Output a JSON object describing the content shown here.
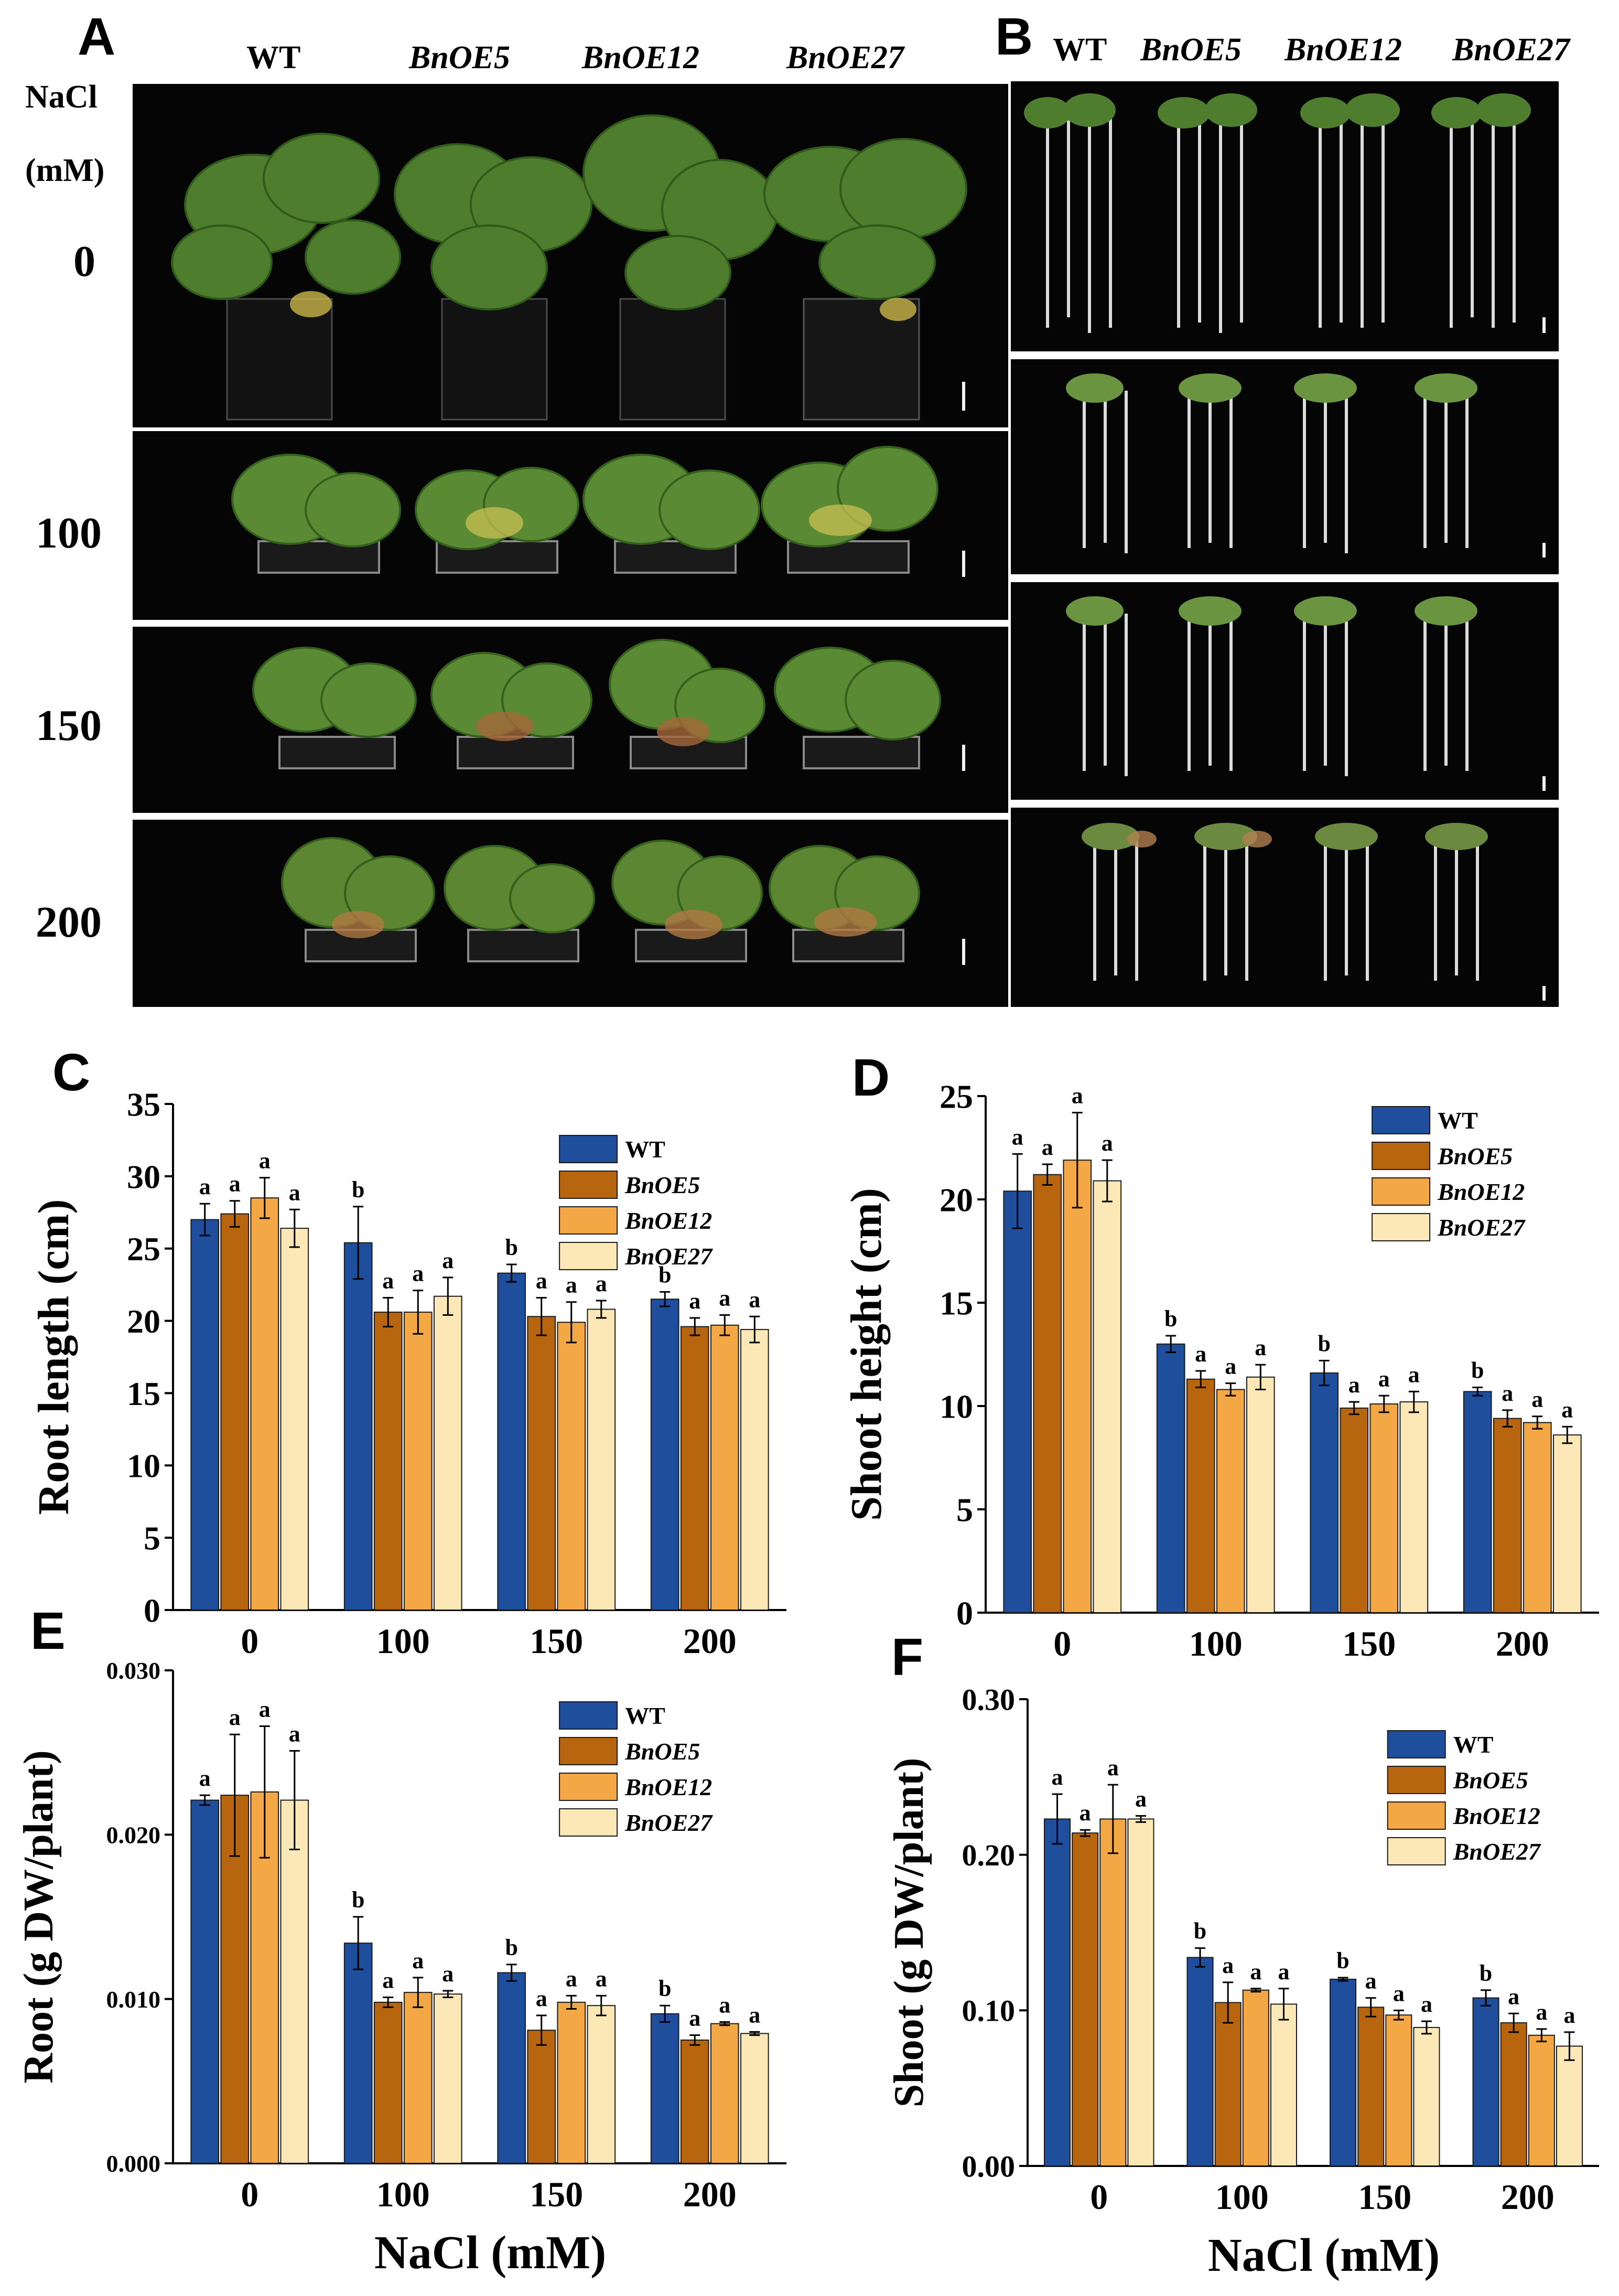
{
  "figure": {
    "panel_labels": [
      "A",
      "B",
      "C",
      "D",
      "E",
      "F"
    ],
    "genotypes": [
      "WT",
      "BnOE5",
      "BnOE12",
      "BnOE27"
    ],
    "nacl_header": [
      "NaCl",
      "(mM)"
    ],
    "salt_levels": [
      "0",
      "100",
      "150",
      "200"
    ],
    "photo_descriptions": {
      "A": "Potted plants of each genotype at each NaCl level",
      "B": "Uprooted seedlings of each genotype at each NaCl level"
    }
  },
  "colors": {
    "WT": "#1f4e9c",
    "BnOE5": "#b8650f",
    "BnOE12": "#f4a845",
    "BnOE27": "#fce7b6"
  },
  "chart_data": [
    {
      "panel": "C",
      "type": "bar",
      "categories": [
        "0",
        "100",
        "150",
        "200"
      ],
      "ylabel": "Root length (cm)",
      "xlabel": "",
      "ylim": [
        0,
        35
      ],
      "yticks": [
        "0",
        "5",
        "10",
        "15",
        "20",
        "25",
        "30",
        "35"
      ],
      "legend_position": "top-right",
      "series": [
        {
          "name": "WT",
          "values": [
            27.0,
            25.4,
            23.3,
            21.5
          ],
          "errors": [
            1.1,
            2.5,
            0.6,
            0.5
          ],
          "letters": [
            "a",
            "b",
            "b",
            "b"
          ]
        },
        {
          "name": "BnOE5",
          "values": [
            27.4,
            20.6,
            20.3,
            19.6
          ],
          "errors": [
            0.9,
            1.0,
            1.3,
            0.6
          ],
          "letters": [
            "a",
            "a",
            "a",
            "a"
          ]
        },
        {
          "name": "BnOE12",
          "values": [
            28.5,
            20.6,
            19.9,
            19.7
          ],
          "errors": [
            1.4,
            1.5,
            1.4,
            0.7
          ],
          "letters": [
            "a",
            "a",
            "a",
            "a"
          ]
        },
        {
          "name": "BnOE27",
          "values": [
            26.4,
            21.7,
            20.8,
            19.4
          ],
          "errors": [
            1.3,
            1.3,
            0.6,
            0.9
          ],
          "letters": [
            "a",
            "a",
            "a",
            "a"
          ]
        }
      ]
    },
    {
      "panel": "D",
      "type": "bar",
      "categories": [
        "0",
        "100",
        "150",
        "200"
      ],
      "ylabel": "Shoot height (cm)",
      "xlabel": "",
      "ylim": [
        0,
        25
      ],
      "yticks": [
        "0",
        "5",
        "10",
        "15",
        "20",
        "25"
      ],
      "legend_position": "top-right",
      "series": [
        {
          "name": "WT",
          "values": [
            20.4,
            13.0,
            11.6,
            10.7
          ],
          "errors": [
            1.8,
            0.4,
            0.6,
            0.2
          ],
          "letters": [
            "a",
            "b",
            "b",
            "b"
          ]
        },
        {
          "name": "BnOE5",
          "values": [
            21.2,
            11.3,
            9.9,
            9.4
          ],
          "errors": [
            0.5,
            0.4,
            0.3,
            0.4
          ],
          "letters": [
            "a",
            "a",
            "a",
            "a"
          ]
        },
        {
          "name": "BnOE12",
          "values": [
            21.9,
            10.8,
            10.1,
            9.2
          ],
          "errors": [
            2.3,
            0.3,
            0.4,
            0.3
          ],
          "letters": [
            "a",
            "a",
            "a",
            "a"
          ]
        },
        {
          "name": "BnOE27",
          "values": [
            20.9,
            11.4,
            10.2,
            8.6
          ],
          "errors": [
            1.0,
            0.6,
            0.5,
            0.4
          ],
          "letters": [
            "a",
            "a",
            "a",
            "a"
          ]
        }
      ]
    },
    {
      "panel": "E",
      "type": "bar",
      "categories": [
        "0",
        "100",
        "150",
        "200"
      ],
      "ylabel": "Root (g DW/plant)",
      "xlabel": "NaCl  (mM)",
      "ylim": [
        0,
        0.03
      ],
      "yticks": [
        "0.000",
        "0.010",
        "0.020",
        "0.030"
      ],
      "legend_position": "top-right",
      "series": [
        {
          "name": "WT",
          "values": [
            0.0221,
            0.0134,
            0.0116,
            0.0091
          ],
          "errors": [
            0.0003,
            0.0016,
            0.0005,
            0.0005
          ],
          "letters": [
            "a",
            "b",
            "b",
            "b"
          ]
        },
        {
          "name": "BnOE5",
          "values": [
            0.0224,
            0.0098,
            0.0081,
            0.0075
          ],
          "errors": [
            0.0037,
            0.0003,
            0.0009,
            0.0003
          ],
          "letters": [
            "a",
            "a",
            "a",
            "a"
          ]
        },
        {
          "name": "BnOE12",
          "values": [
            0.0226,
            0.0104,
            0.0098,
            0.0085
          ],
          "errors": [
            0.004,
            0.0009,
            0.0004,
            0.0001
          ],
          "letters": [
            "a",
            "a",
            "a",
            "a"
          ]
        },
        {
          "name": "BnOE27",
          "values": [
            0.0221,
            0.0103,
            0.0096,
            0.0079
          ],
          "errors": [
            0.003,
            0.0002,
            0.0006,
            0.0001
          ],
          "letters": [
            "a",
            "a",
            "a",
            "a"
          ]
        }
      ]
    },
    {
      "panel": "F",
      "type": "bar",
      "categories": [
        "0",
        "100",
        "150",
        "200"
      ],
      "ylabel": "Shoot (g DW/plant)",
      "xlabel": "NaCl  (mM)",
      "ylim": [
        0,
        0.3
      ],
      "yticks": [
        "0.00",
        "0.10",
        "0.20",
        "0.30"
      ],
      "legend_position": "top-right",
      "series": [
        {
          "name": "WT",
          "values": [
            0.223,
            0.134,
            0.12,
            0.108
          ],
          "errors": [
            0.016,
            0.006,
            0.001,
            0.005
          ],
          "letters": [
            "a",
            "b",
            "b",
            "b"
          ]
        },
        {
          "name": "BnOE5",
          "values": [
            0.214,
            0.105,
            0.102,
            0.092
          ],
          "errors": [
            0.002,
            0.013,
            0.006,
            0.006
          ],
          "letters": [
            "a",
            "a",
            "a",
            "a"
          ]
        },
        {
          "name": "BnOE12",
          "values": [
            0.223,
            0.113,
            0.097,
            0.084
          ],
          "errors": [
            0.022,
            0.001,
            0.003,
            0.004
          ],
          "letters": [
            "a",
            "a",
            "a",
            "a"
          ]
        },
        {
          "name": "BnOE27",
          "values": [
            0.223,
            0.104,
            0.089,
            0.077
          ],
          "errors": [
            0.002,
            0.01,
            0.004,
            0.009
          ],
          "letters": [
            "a",
            "a",
            "a",
            "a"
          ]
        }
      ]
    }
  ]
}
